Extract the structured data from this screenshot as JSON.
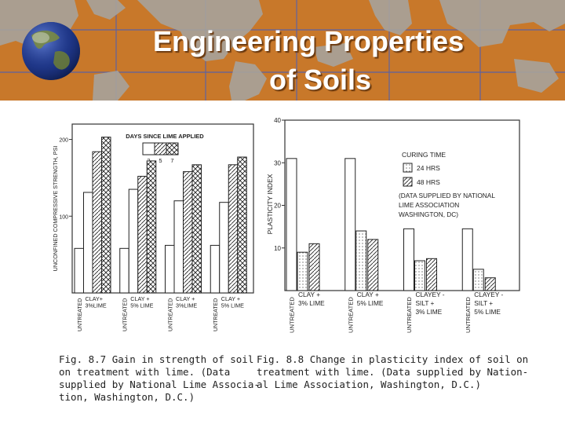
{
  "slide": {
    "title_line1": "Engineering Properties",
    "title_line2": "of Soils",
    "globe_icon": "globe-icon",
    "banner_color": "#c8782a"
  },
  "chart_data": [
    {
      "type": "bar",
      "ylabel": "UNCONFINED COMPRESSIVE STRENGTH, PSI",
      "ylim": [
        0,
        220
      ],
      "yticks": [
        100,
        200
      ],
      "legend_title": "DAYS SINCE LIME APPLIED",
      "legend_keys": [
        "2",
        "5",
        "7"
      ],
      "legend_placement": "top-center",
      "groups": [
        {
          "untreated_label": "UNTREATED",
          "treated_label": [
            "CLAY+",
            "3%LIME"
          ],
          "untreated": 58,
          "values": [
            131,
            184,
            203
          ]
        },
        {
          "untreated_label": "UNTREATED",
          "treated_label": [
            "CLAY +",
            "5% LIME"
          ],
          "untreated": 58,
          "values": [
            135,
            152,
            172
          ]
        },
        {
          "untreated_label": "UNTREATED",
          "treated_label": [
            "CLAY +",
            "3%LIME"
          ],
          "untreated": 62,
          "values": [
            120,
            158,
            167
          ]
        },
        {
          "untreated_label": "UNTREATED",
          "treated_label": [
            "CLAY +",
            "5% LIME"
          ],
          "untreated": 62,
          "values": [
            118,
            167,
            177
          ]
        }
      ],
      "series": [
        {
          "name": "2",
          "pattern": "white"
        },
        {
          "name": "5",
          "pattern": "diagonal-hatch"
        },
        {
          "name": "7",
          "pattern": "cross-hatch"
        }
      ],
      "caption": "Fig. 8.7 Gain in strength of soil\non treatment with lime. (Data\nsupplied by National Lime Associa-\ntion, Washington, D.C.)"
    },
    {
      "type": "bar",
      "ylabel": "PLASTICITY INDEX",
      "ylim": [
        0,
        40
      ],
      "yticks": [
        10,
        20,
        30,
        40
      ],
      "legend_title": "CURING TIME",
      "legend_placement": "top-right",
      "series": [
        {
          "name": "24 HRS",
          "pattern": "dots"
        },
        {
          "name": "48 HRS",
          "pattern": "diagonal-hatch"
        }
      ],
      "note": "(DATA SUPPLIED BY NATIONAL\nLIME ASSOCIATION\nWASHINGTON, DC)",
      "groups": [
        {
          "untreated_label": "UNTREATED",
          "treated_label": [
            "CLAY +",
            "3% LIME"
          ],
          "untreated": 31,
          "values": [
            9,
            11
          ]
        },
        {
          "untreated_label": "UNTREATED",
          "treated_label": [
            "CLAY +",
            "5% LIME"
          ],
          "untreated": 31,
          "values": [
            14,
            12
          ]
        },
        {
          "untreated_label": "UNTREATED",
          "treated_label": [
            "CLAYEY -",
            "SILT +",
            "3% LIME"
          ],
          "untreated": 14.5,
          "values": [
            7,
            7.5
          ]
        },
        {
          "untreated_label": "UNTREATED",
          "treated_label": [
            "CLAYEY -",
            "SILT +",
            "5% LIME"
          ],
          "untreated": 14.5,
          "values": [
            5,
            3
          ]
        }
      ],
      "caption": "Fig. 8.8 Change in plasticity index of soil on\ntreatment with lime. (Data supplied by Nation-\nal Lime Association, Washington, D.C.)"
    }
  ]
}
